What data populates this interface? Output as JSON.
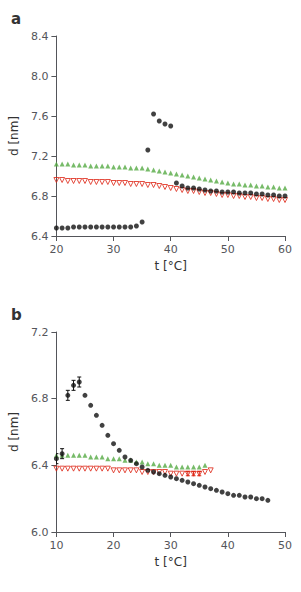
{
  "chart_data": [
    {
      "type": "scatter",
      "title": "a",
      "xlabel": "t [°C]",
      "ylabel": "d [nm]",
      "xlim": [
        20,
        60
      ],
      "ylim": [
        6.4,
        8.4
      ],
      "xticks": [
        20,
        30,
        40,
        50,
        60
      ],
      "yticks": [
        6.4,
        6.8,
        7.2,
        7.6,
        {
          "value": 8,
          "label": "8.0"
        },
        8.4
      ],
      "grid": false,
      "series": [
        {
          "color": "#111111",
          "marker": "circle",
          "x": [
            20,
            21,
            22,
            23,
            24,
            25,
            26,
            27,
            28,
            29,
            30,
            31,
            32,
            33,
            34,
            35,
            36,
            37,
            38,
            39,
            40,
            41,
            42,
            43,
            44,
            45,
            46,
            47,
            48,
            49,
            50,
            51,
            52,
            53,
            54,
            55,
            56,
            57,
            58,
            59,
            60
          ],
          "values": [
            6.48,
            6.48,
            6.48,
            6.49,
            6.49,
            6.49,
            6.49,
            6.49,
            6.49,
            6.49,
            6.49,
            6.49,
            6.49,
            6.49,
            6.5,
            6.54,
            7.26,
            7.62,
            7.55,
            7.52,
            7.5,
            6.93,
            6.9,
            6.88,
            6.88,
            6.87,
            6.86,
            6.85,
            6.85,
            6.84,
            6.84,
            6.84,
            6.83,
            6.83,
            6.83,
            6.82,
            6.82,
            6.81,
            6.81,
            6.8,
            6.8
          ]
        },
        {
          "color": "#55aa44",
          "marker": "triangle-up",
          "x": [
            20,
            21,
            22,
            23,
            24,
            25,
            26,
            27,
            28,
            29,
            30,
            31,
            32,
            33,
            34,
            35,
            36,
            37,
            38,
            39,
            40,
            41,
            42,
            43,
            44,
            45,
            46,
            47,
            48,
            49,
            50,
            51,
            52,
            53,
            54,
            55,
            56,
            57,
            58,
            59,
            60
          ],
          "values": [
            7.12,
            7.12,
            7.12,
            7.11,
            7.11,
            7.11,
            7.1,
            7.1,
            7.1,
            7.1,
            7.09,
            7.09,
            7.09,
            7.08,
            7.08,
            7.08,
            7.07,
            7.06,
            7.05,
            7.04,
            7.03,
            7.02,
            7.01,
            7.0,
            6.99,
            6.98,
            6.97,
            6.96,
            6.95,
            6.94,
            6.93,
            6.92,
            6.92,
            6.91,
            6.91,
            6.9,
            6.9,
            6.89,
            6.89,
            6.88,
            6.88
          ]
        },
        {
          "color": "#dd2211",
          "marker": "open-triangle-down",
          "x": [
            20,
            21,
            22,
            23,
            24,
            25,
            26,
            27,
            28,
            29,
            30,
            31,
            32,
            33,
            34,
            35,
            36,
            37,
            38,
            39,
            40,
            41,
            42,
            43,
            44,
            45,
            46,
            47,
            48,
            49,
            50,
            51,
            52,
            53,
            54,
            55,
            56,
            57,
            58,
            59,
            60
          ],
          "values": [
            6.96,
            6.96,
            6.95,
            6.95,
            6.95,
            6.95,
            6.94,
            6.94,
            6.94,
            6.94,
            6.93,
            6.93,
            6.93,
            6.92,
            6.92,
            6.92,
            6.91,
            6.91,
            6.9,
            6.89,
            6.88,
            6.87,
            6.86,
            6.85,
            6.85,
            6.84,
            6.83,
            6.83,
            6.82,
            6.81,
            6.81,
            6.8,
            6.8,
            6.79,
            6.79,
            6.78,
            6.78,
            6.77,
            6.77,
            6.76,
            6.76
          ]
        }
      ]
    },
    {
      "type": "scatter",
      "title": "b",
      "xlabel": "t [°C]",
      "ylabel": "d [nm]",
      "xlim": [
        10,
        50
      ],
      "ylim": [
        6,
        7.2
      ],
      "xticks": [
        10,
        20,
        30,
        40,
        50
      ],
      "yticks": [
        {
          "value": 6,
          "label": "6.0"
        },
        6.4,
        6.8,
        7.2
      ],
      "grid": false,
      "series": [
        {
          "color": "#111111",
          "marker": "circle",
          "x": [
            10,
            11,
            12,
            13,
            14,
            15,
            16,
            17,
            18,
            19,
            20,
            21,
            22,
            23,
            24,
            25,
            26,
            27,
            28,
            29,
            30,
            31,
            32,
            33,
            34,
            35,
            36,
            37,
            38,
            39,
            40,
            41,
            42,
            43,
            44,
            45,
            46,
            47
          ],
          "values": [
            6.44,
            6.47,
            6.82,
            6.88,
            6.9,
            6.82,
            6.76,
            6.7,
            6.64,
            6.58,
            6.53,
            6.49,
            6.45,
            6.43,
            6.41,
            6.39,
            6.37,
            6.36,
            6.35,
            6.34,
            6.33,
            6.32,
            6.31,
            6.3,
            6.29,
            6.28,
            6.27,
            6.26,
            6.25,
            6.24,
            6.23,
            6.22,
            6.22,
            6.21,
            6.21,
            6.2,
            6.2,
            6.19
          ],
          "yerr": [
            0.03,
            0.03,
            0.03,
            0.03,
            0.03,
            null,
            null,
            null,
            null,
            null,
            null,
            null,
            null,
            null,
            null,
            null,
            null,
            null,
            null,
            null,
            null,
            null,
            null,
            null,
            null,
            null,
            null,
            null,
            null,
            null,
            null,
            null,
            null,
            null,
            null,
            null,
            null,
            null
          ]
        },
        {
          "color": "#55aa44",
          "marker": "triangle-up",
          "x": [
            10,
            11,
            12,
            13,
            14,
            15,
            16,
            17,
            18,
            19,
            20,
            21,
            22,
            23,
            24,
            25,
            26,
            27,
            28,
            29,
            30,
            31,
            32,
            33,
            34,
            35,
            36
          ],
          "values": [
            6.46,
            6.46,
            6.46,
            6.46,
            6.46,
            6.46,
            6.45,
            6.45,
            6.45,
            6.44,
            6.44,
            6.44,
            6.43,
            6.43,
            6.42,
            6.42,
            6.41,
            6.41,
            6.4,
            6.4,
            6.4,
            6.39,
            6.39,
            6.39,
            6.39,
            6.39,
            6.4
          ]
        },
        {
          "color": "#dd2211",
          "marker": "open-triangle-down",
          "x": [
            10,
            11,
            12,
            13,
            14,
            15,
            16,
            17,
            18,
            19,
            20,
            21,
            22,
            23,
            24,
            25,
            26,
            27,
            28,
            29,
            30,
            31,
            32,
            33,
            34,
            35,
            36,
            37
          ],
          "values": [
            6.38,
            6.38,
            6.38,
            6.38,
            6.38,
            6.38,
            6.38,
            6.38,
            6.38,
            6.38,
            6.37,
            6.37,
            6.37,
            6.37,
            6.37,
            6.36,
            6.36,
            6.36,
            6.36,
            6.36,
            6.35,
            6.35,
            6.35,
            6.35,
            6.35,
            6.35,
            6.36,
            6.37
          ],
          "yerr": [
            null,
            null,
            null,
            null,
            null,
            null,
            null,
            null,
            null,
            null,
            null,
            null,
            null,
            null,
            null,
            null,
            null,
            null,
            null,
            null,
            null,
            null,
            null,
            0.0125,
            0.0125,
            0.0125,
            null,
            null
          ]
        }
      ]
    }
  ]
}
